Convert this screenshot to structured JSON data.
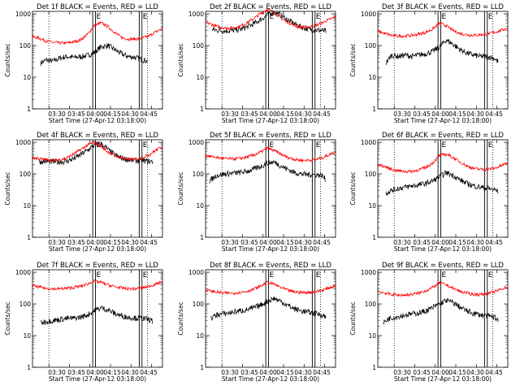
{
  "figure": {
    "start_time_label": "Start Time (27-Apr-12 03:18:00)",
    "ylabel": "Counts/sec",
    "y_ticks": [
      "1",
      "10",
      "100",
      "1000"
    ],
    "x_ticks": [
      "03:30",
      "03:45",
      "04:00",
      "04:15",
      "04:30",
      "04:45"
    ],
    "flag_letters": [
      "E",
      "E"
    ],
    "colors": {
      "events": "#000000",
      "lld": "#ff0000",
      "axes": "#000000",
      "background": "#ffffff"
    }
  },
  "chart_data": [
    {
      "type": "line",
      "title": "Det 1f BLACK = Events, RED = LLD",
      "xlabel": "Start Time (27-Apr-12 03:18:00)",
      "ylabel": "Counts/sec",
      "yscale": "log",
      "ylim": [
        1,
        1200
      ],
      "x_ticks": [
        "03:30",
        "03:45",
        "04:00",
        "04:15",
        "04:30",
        "04:45"
      ],
      "x_range_minutes": [
        0,
        95
      ],
      "markers_dotted_minutes": [
        12,
        84
      ],
      "markers_solid_minutes": [
        44,
        46,
        78,
        80
      ],
      "series": [
        {
          "name": "Events",
          "color": "#000000",
          "x": [
            6,
            10,
            15,
            20,
            25,
            30,
            35,
            40,
            45,
            50,
            55,
            60,
            65,
            70,
            75,
            80,
            84
          ],
          "y": [
            28,
            35,
            32,
            40,
            45,
            42,
            44,
            48,
            60,
            90,
            100,
            75,
            55,
            45,
            42,
            36,
            32
          ]
        },
        {
          "name": "LLD",
          "color": "#ff0000",
          "x": [
            0,
            5,
            10,
            15,
            20,
            25,
            30,
            35,
            40,
            45,
            50,
            55,
            60,
            65,
            70,
            75,
            80,
            85,
            90,
            95
          ],
          "y": [
            190,
            170,
            140,
            125,
            120,
            120,
            130,
            150,
            220,
            420,
            520,
            400,
            260,
            180,
            160,
            160,
            170,
            200,
            270,
            350
          ]
        }
      ]
    },
    {
      "type": "line",
      "title": "Det 2f BLACK = Events, RED = LLD",
      "xlabel": "Start Time (27-Apr-12 03:18:00)",
      "ylabel": "Counts/sec",
      "yscale": "log",
      "ylim": [
        1,
        1200
      ],
      "x_ticks": [
        "03:30",
        "03:45",
        "04:00",
        "04:15",
        "04:30",
        "04:45"
      ],
      "x_range_minutes": [
        0,
        95
      ],
      "markers_dotted_minutes": [
        12,
        84
      ],
      "markers_solid_minutes": [
        44,
        46,
        78,
        80
      ],
      "series": [
        {
          "name": "Events",
          "color": "#000000",
          "x": [
            5,
            10,
            15,
            20,
            25,
            30,
            35,
            40,
            45,
            50,
            55,
            60,
            65,
            70,
            75,
            80,
            85,
            88
          ],
          "y": [
            320,
            300,
            290,
            300,
            320,
            380,
            480,
            650,
            900,
            1150,
            900,
            650,
            480,
            380,
            330,
            310,
            300,
            280
          ]
        },
        {
          "name": "LLD",
          "color": "#ff0000",
          "x": [
            0,
            5,
            10,
            15,
            20,
            25,
            30,
            35,
            40,
            45,
            50,
            55,
            60,
            65,
            70,
            75,
            80,
            85,
            90,
            95
          ],
          "y": [
            550,
            450,
            380,
            360,
            360,
            400,
            520,
            700,
            1000,
            1400,
            1100,
            750,
            550,
            430,
            380,
            380,
            420,
            520,
            650,
            800
          ]
        }
      ]
    },
    {
      "type": "line",
      "title": "Det 3f BLACK = Events, RED = LLD",
      "xlabel": "Start Time (27-Apr-12 03:18:00)",
      "ylabel": "Counts/sec",
      "yscale": "log",
      "ylim": [
        1,
        1200
      ],
      "x_ticks": [
        "03:30",
        "03:45",
        "04:00",
        "04:15",
        "04:30",
        "04:45"
      ],
      "x_range_minutes": [
        0,
        95
      ],
      "markers_dotted_minutes": [
        12,
        84
      ],
      "markers_solid_minutes": [
        44,
        46,
        78,
        80
      ],
      "series": [
        {
          "name": "Events",
          "color": "#000000",
          "x": [
            6,
            10,
            15,
            20,
            25,
            30,
            35,
            40,
            45,
            50,
            55,
            60,
            65,
            70,
            75,
            80,
            85,
            88
          ],
          "y": [
            28,
            50,
            45,
            50,
            45,
            50,
            55,
            65,
            90,
            150,
            110,
            75,
            58,
            50,
            45,
            45,
            40,
            30
          ]
        },
        {
          "name": "LLD",
          "color": "#ff0000",
          "x": [
            0,
            5,
            10,
            15,
            20,
            25,
            30,
            35,
            40,
            45,
            50,
            55,
            60,
            65,
            70,
            75,
            80,
            85,
            90,
            95
          ],
          "y": [
            280,
            240,
            210,
            200,
            200,
            210,
            230,
            260,
            330,
            500,
            420,
            300,
            240,
            220,
            210,
            220,
            230,
            260,
            300,
            360
          ]
        }
      ]
    },
    {
      "type": "line",
      "title": "Det 4f BLACK = Events, RED = LLD",
      "xlabel": "Start Time (27-Apr-12 03:18:00)",
      "ylabel": "Counts/sec",
      "yscale": "log",
      "ylim": [
        1,
        1200
      ],
      "x_ticks": [
        "03:30",
        "03:45",
        "04:00",
        "04:15",
        "04:30",
        "04:45"
      ],
      "x_range_minutes": [
        0,
        95
      ],
      "markers_dotted_minutes": [
        12,
        84
      ],
      "markers_solid_minutes": [
        44,
        46,
        78,
        80
      ],
      "series": [
        {
          "name": "Events",
          "color": "#000000",
          "x": [
            5,
            10,
            15,
            20,
            25,
            30,
            35,
            40,
            45,
            50,
            55,
            60,
            65,
            70,
            75,
            80,
            85,
            88
          ],
          "y": [
            240,
            250,
            240,
            240,
            250,
            300,
            400,
            550,
            800,
            900,
            600,
            400,
            320,
            280,
            260,
            260,
            250,
            240
          ]
        },
        {
          "name": "LLD",
          "color": "#ff0000",
          "x": [
            0,
            5,
            10,
            15,
            20,
            25,
            30,
            35,
            40,
            45,
            50,
            55,
            60,
            65,
            70,
            75,
            80,
            85,
            90,
            95
          ],
          "y": [
            330,
            300,
            280,
            270,
            280,
            320,
            420,
            580,
            800,
            1000,
            750,
            500,
            380,
            320,
            290,
            290,
            320,
            400,
            550,
            750
          ]
        }
      ]
    },
    {
      "type": "line",
      "title": "Det 5f BLACK = Events, RED = LLD",
      "xlabel": "Start Time (27-Apr-12 03:18:00)",
      "ylabel": "Counts/sec",
      "yscale": "log",
      "ylim": [
        1,
        1200
      ],
      "x_ticks": [
        "03:30",
        "03:45",
        "04:00",
        "04:15",
        "04:30",
        "04:45"
      ],
      "x_range_minutes": [
        0,
        95
      ],
      "markers_dotted_minutes": [
        12,
        84
      ],
      "markers_solid_minutes": [
        44,
        46,
        78,
        80
      ],
      "series": [
        {
          "name": "Events",
          "color": "#000000",
          "x": [
            3,
            8,
            15,
            20,
            25,
            30,
            35,
            40,
            45,
            50,
            55,
            60,
            65,
            70,
            75,
            80,
            85,
            88
          ],
          "y": [
            60,
            90,
            100,
            105,
            110,
            120,
            140,
            170,
            220,
            240,
            180,
            140,
            110,
            100,
            95,
            95,
            90,
            65
          ]
        },
        {
          "name": "LLD",
          "color": "#ff0000",
          "x": [
            0,
            5,
            10,
            15,
            20,
            25,
            30,
            35,
            40,
            45,
            50,
            55,
            60,
            65,
            70,
            75,
            80,
            85,
            90,
            95
          ],
          "y": [
            380,
            350,
            320,
            300,
            300,
            310,
            340,
            390,
            480,
            650,
            550,
            420,
            330,
            290,
            270,
            270,
            280,
            320,
            400,
            500
          ]
        }
      ]
    },
    {
      "type": "line",
      "title": "Det 6f BLACK = Events, RED = LLD",
      "xlabel": "Start Time (27-Apr-12 03:18:00)",
      "ylabel": "Counts/sec",
      "yscale": "log",
      "ylim": [
        1,
        1200
      ],
      "x_ticks": [
        "03:30",
        "03:45",
        "04:00",
        "04:15",
        "04:30",
        "04:45"
      ],
      "x_range_minutes": [
        0,
        95
      ],
      "markers_dotted_minutes": [
        12,
        84
      ],
      "markers_solid_minutes": [
        44,
        46,
        78,
        80
      ],
      "series": [
        {
          "name": "Events",
          "color": "#000000",
          "x": [
            6,
            10,
            15,
            20,
            25,
            30,
            35,
            40,
            45,
            50,
            55,
            60,
            65,
            70,
            75,
            80,
            85,
            88
          ],
          "y": [
            25,
            30,
            35,
            38,
            42,
            45,
            50,
            60,
            80,
            110,
            90,
            65,
            50,
            42,
            38,
            35,
            32,
            28
          ]
        },
        {
          "name": "LLD",
          "color": "#ff0000",
          "x": [
            0,
            5,
            10,
            15,
            20,
            25,
            30,
            35,
            40,
            45,
            50,
            55,
            60,
            65,
            70,
            75,
            80,
            85,
            90,
            95
          ],
          "y": [
            200,
            170,
            140,
            125,
            120,
            120,
            135,
            160,
            220,
            380,
            420,
            330,
            240,
            180,
            150,
            140,
            140,
            150,
            180,
            230
          ]
        }
      ]
    },
    {
      "type": "line",
      "title": "Det 7f BLACK = Events, RED = LLD",
      "xlabel": "Start Time (27-Apr-12 03:18:00)",
      "ylabel": "Counts/sec",
      "yscale": "log",
      "ylim": [
        1,
        1200
      ],
      "x_ticks": [
        "03:30",
        "03:45",
        "04:00",
        "04:15",
        "04:30",
        "04:45"
      ],
      "x_range_minutes": [
        0,
        95
      ],
      "markers_dotted_minutes": [
        12,
        84
      ],
      "markers_solid_minutes": [
        44,
        46,
        78,
        80
      ],
      "series": [
        {
          "name": "Events",
          "color": "#000000",
          "x": [
            6,
            10,
            15,
            20,
            25,
            30,
            35,
            40,
            45,
            50,
            55,
            60,
            65,
            70,
            75,
            80,
            85,
            88
          ],
          "y": [
            25,
            28,
            30,
            32,
            35,
            35,
            38,
            45,
            60,
            75,
            65,
            50,
            42,
            38,
            36,
            35,
            32,
            28
          ]
        },
        {
          "name": "LLD",
          "color": "#ff0000",
          "x": [
            0,
            5,
            10,
            15,
            20,
            25,
            30,
            35,
            40,
            45,
            50,
            55,
            60,
            65,
            70,
            75,
            80,
            85,
            90,
            95
          ],
          "y": [
            380,
            340,
            310,
            300,
            300,
            310,
            330,
            360,
            420,
            520,
            480,
            400,
            350,
            320,
            300,
            300,
            320,
            360,
            420,
            500
          ]
        }
      ]
    },
    {
      "type": "line",
      "title": "Det 8f BLACK = Events, RED = LLD",
      "xlabel": "Start Time (27-Apr-12 03:18:00)",
      "ylabel": "Counts/sec",
      "yscale": "log",
      "ylim": [
        1,
        1200
      ],
      "x_ticks": [
        "03:30",
        "03:45",
        "04:00",
        "04:15",
        "04:30",
        "04:45"
      ],
      "x_range_minutes": [
        0,
        95
      ],
      "markers_dotted_minutes": [
        12,
        84
      ],
      "markers_solid_minutes": [
        44,
        46,
        78,
        80
      ],
      "series": [
        {
          "name": "Events",
          "color": "#000000",
          "x": [
            4,
            8,
            15,
            20,
            25,
            30,
            35,
            40,
            45,
            50,
            55,
            60,
            65,
            70,
            75,
            80,
            85,
            88
          ],
          "y": [
            35,
            45,
            50,
            55,
            60,
            65,
            75,
            90,
            120,
            150,
            120,
            90,
            70,
            60,
            55,
            50,
            45,
            38
          ]
        },
        {
          "name": "LLD",
          "color": "#ff0000",
          "x": [
            0,
            5,
            10,
            15,
            20,
            25,
            30,
            35,
            40,
            45,
            50,
            55,
            60,
            65,
            70,
            75,
            80,
            85,
            90,
            95
          ],
          "y": [
            280,
            250,
            230,
            220,
            220,
            230,
            250,
            290,
            360,
            480,
            420,
            330,
            270,
            240,
            230,
            230,
            240,
            270,
            320,
            380
          ]
        }
      ]
    },
    {
      "type": "line",
      "title": "Det 9f BLACK = Events, RED = LLD",
      "xlabel": "Start Time (27-Apr-12 03:18:00)",
      "ylabel": "Counts/sec",
      "yscale": "log",
      "ylim": [
        1,
        1200
      ],
      "x_ticks": [
        "03:30",
        "03:45",
        "04:00",
        "04:15",
        "04:30",
        "04:45"
      ],
      "x_range_minutes": [
        0,
        95
      ],
      "markers_dotted_minutes": [
        12,
        84
      ],
      "markers_solid_minutes": [
        44,
        46,
        78,
        80
      ],
      "series": [
        {
          "name": "Events",
          "color": "#000000",
          "x": [
            4,
            8,
            15,
            20,
            25,
            30,
            35,
            40,
            45,
            50,
            55,
            60,
            65,
            70,
            75,
            80,
            85,
            88
          ],
          "y": [
            25,
            35,
            40,
            45,
            48,
            52,
            60,
            75,
            100,
            130,
            110,
            80,
            60,
            50,
            45,
            42,
            38,
            32
          ]
        },
        {
          "name": "LLD",
          "color": "#ff0000",
          "x": [
            0,
            5,
            10,
            15,
            20,
            25,
            30,
            35,
            40,
            45,
            50,
            55,
            60,
            65,
            70,
            75,
            80,
            85,
            90,
            95
          ],
          "y": [
            250,
            220,
            200,
            190,
            190,
            200,
            220,
            260,
            330,
            460,
            400,
            310,
            250,
            220,
            200,
            200,
            210,
            240,
            290,
            350
          ]
        }
      ]
    }
  ]
}
